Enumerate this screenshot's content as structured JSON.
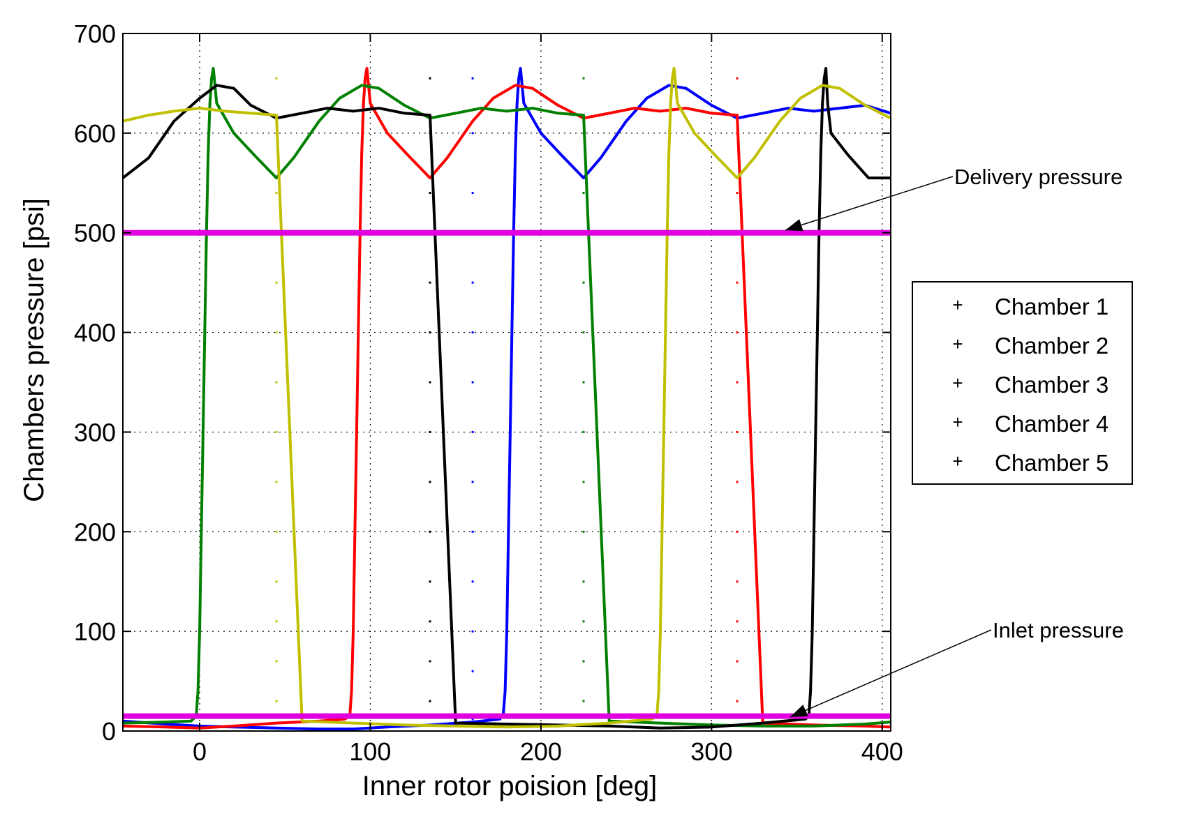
{
  "chart_data": {
    "type": "line",
    "title": "",
    "xlabel": "Inner rotor poision [deg]",
    "ylabel": "Chambers pressure [psi]",
    "xlim": [
      -45,
      405
    ],
    "ylim": [
      0,
      700
    ],
    "xticks": [
      0,
      100,
      200,
      300,
      400
    ],
    "yticks": [
      0,
      100,
      200,
      300,
      400,
      500,
      600,
      700
    ],
    "x_tick_labels": [
      "0",
      "100",
      "200",
      "300",
      "400"
    ],
    "y_tick_labels": [
      "0",
      "100",
      "200",
      "300",
      "400",
      "500",
      "600",
      "700"
    ],
    "grid": true,
    "legend_position": "right",
    "delivery_pressure": 500,
    "inlet_pressure": 15,
    "reference_color": "#e000e0",
    "series": [
      {
        "name": "Chamber 1",
        "color": "#0000ff",
        "x": [
          -45,
          -20,
          0,
          20,
          45,
          70,
          90,
          110,
          135,
          160,
          176,
          178,
          179,
          180,
          181,
          182,
          183,
          184,
          185,
          186,
          187,
          188,
          190,
          200,
          212,
          225,
          235,
          250,
          262,
          275,
          285,
          300,
          315,
          330,
          345,
          360,
          375,
          390,
          405
        ],
        "y": [
          10,
          7,
          5,
          4,
          3,
          2,
          2,
          4,
          6,
          9,
          12,
          18,
          40,
          100,
          200,
          300,
          400,
          500,
          580,
          630,
          655,
          665,
          630,
          600,
          578,
          555,
          575,
          612,
          635,
          648,
          645,
          628,
          615,
          620,
          625,
          622,
          625,
          628,
          620
        ],
        "dots_x": 160,
        "dots_y": [
          12,
          60,
          100,
          150,
          200,
          250,
          300,
          350,
          400,
          450,
          500,
          540,
          600,
          655
        ]
      },
      {
        "name": "Chamber 2",
        "color": "#ff0000",
        "x": [
          -45,
          -20,
          0,
          20,
          45,
          70,
          85,
          88,
          89,
          90,
          91,
          92,
          93,
          94,
          95,
          96,
          97,
          98,
          100,
          110,
          122,
          135,
          145,
          160,
          172,
          185,
          195,
          210,
          225,
          240,
          255,
          270,
          285,
          300,
          315,
          330,
          360,
          390,
          405
        ],
        "y": [
          5,
          4,
          3,
          5,
          8,
          10,
          12,
          15,
          40,
          100,
          200,
          300,
          400,
          500,
          580,
          630,
          655,
          665,
          630,
          600,
          578,
          555,
          575,
          612,
          635,
          648,
          645,
          628,
          615,
          620,
          625,
          622,
          625,
          620,
          618,
          8,
          6,
          5,
          4
        ],
        "dots_x": 315,
        "dots_y": [
          30,
          70,
          110,
          150,
          200,
          250,
          300,
          350,
          400,
          450,
          500,
          540,
          600,
          655
        ]
      },
      {
        "name": "Chamber 3",
        "color": "#008000",
        "x": [
          -45,
          -20,
          -5,
          -2,
          -1,
          0,
          1,
          2,
          3,
          4,
          5,
          6,
          7,
          8,
          10,
          20,
          32,
          45,
          55,
          70,
          82,
          95,
          105,
          120,
          135,
          150,
          165,
          180,
          195,
          210,
          225,
          240,
          270,
          300,
          330,
          360,
          390,
          405
        ],
        "y": [
          8,
          9,
          10,
          15,
          40,
          100,
          200,
          300,
          400,
          500,
          580,
          630,
          655,
          665,
          630,
          600,
          578,
          555,
          575,
          612,
          635,
          648,
          645,
          628,
          615,
          620,
          625,
          622,
          625,
          620,
          618,
          10,
          8,
          6,
          5,
          5,
          7,
          9
        ],
        "dots_x": 225,
        "dots_y": [
          30,
          70,
          110,
          150,
          200,
          250,
          300,
          350,
          400,
          450,
          500,
          540,
          600,
          655
        ]
      },
      {
        "name": "Chamber 4",
        "color": "#000000",
        "x": [
          -45,
          -30,
          -15,
          0,
          10,
          20,
          30,
          45,
          60,
          75,
          90,
          105,
          120,
          135,
          150,
          180,
          210,
          240,
          270,
          300,
          330,
          355,
          357,
          358,
          359,
          360,
          361,
          362,
          363,
          364,
          365,
          366,
          367,
          368,
          370,
          380,
          392,
          405
        ],
        "y": [
          555,
          575,
          612,
          635,
          648,
          645,
          628,
          615,
          620,
          625,
          622,
          625,
          620,
          618,
          8,
          7,
          6,
          5,
          3,
          4,
          8,
          12,
          15,
          40,
          100,
          200,
          300,
          400,
          500,
          580,
          630,
          655,
          665,
          630,
          600,
          578,
          555,
          555
        ],
        "dots_x": 135,
        "dots_y": [
          30,
          70,
          110,
          150,
          200,
          250,
          300,
          350,
          400,
          450,
          500,
          540,
          600,
          655
        ]
      },
      {
        "name": "Chamber 5",
        "color": "#c0c000",
        "x": [
          -45,
          -30,
          -15,
          0,
          15,
          30,
          45,
          60,
          90,
          120,
          150,
          180,
          210,
          240,
          265,
          268,
          269,
          270,
          271,
          272,
          273,
          274,
          275,
          276,
          277,
          278,
          280,
          290,
          302,
          315,
          325,
          340,
          352,
          365,
          375,
          390,
          405
        ],
        "y": [
          612,
          618,
          622,
          625,
          622,
          620,
          618,
          10,
          8,
          6,
          5,
          4,
          5,
          8,
          12,
          15,
          40,
          100,
          200,
          300,
          400,
          500,
          580,
          630,
          655,
          665,
          630,
          600,
          578,
          555,
          575,
          612,
          635,
          648,
          645,
          628,
          615
        ],
        "dots_x": 45,
        "dots_y": [
          30,
          70,
          110,
          150,
          200,
          250,
          300,
          350,
          400,
          450,
          500,
          540,
          600,
          655
        ]
      }
    ],
    "annotations": [
      {
        "text": "Delivery pressure",
        "x": 340,
        "y": 500
      },
      {
        "text": "Inlet pressure",
        "x": 345,
        "y": 15
      }
    ]
  }
}
